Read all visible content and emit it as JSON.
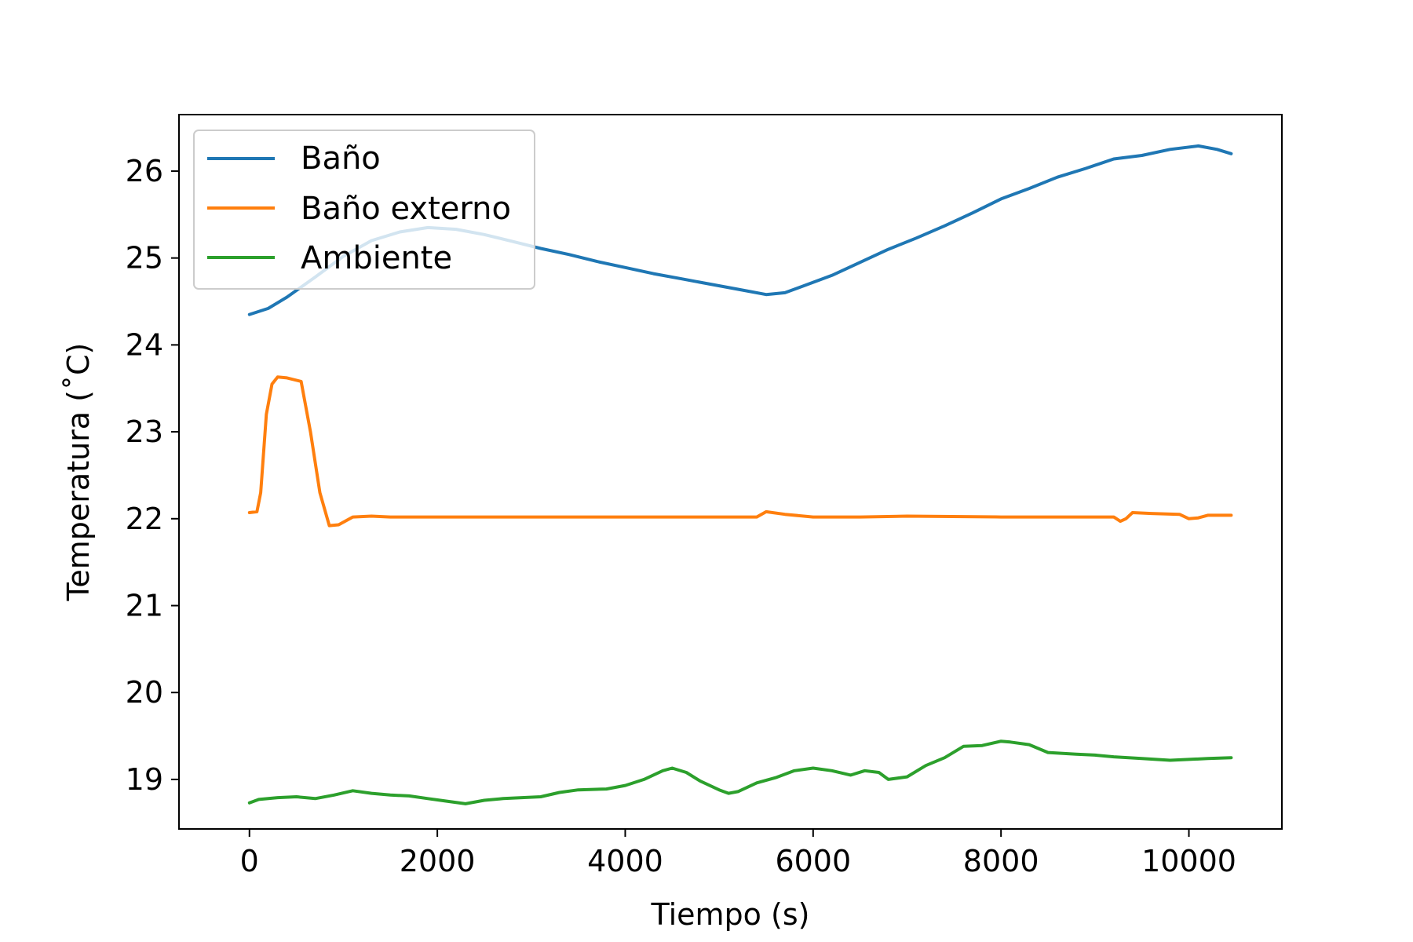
{
  "chart_data": {
    "type": "line",
    "title": "",
    "xlabel": "Tiempo (s)",
    "ylabel": "Temperatura (˚C)",
    "xlim": [
      -750,
      10990
    ],
    "ylim": [
      18.43,
      26.65
    ],
    "xticks": [
      0,
      2000,
      4000,
      6000,
      8000,
      10000
    ],
    "yticks": [
      19,
      20,
      21,
      22,
      23,
      24,
      25,
      26
    ],
    "grid": false,
    "legend_position": "upper left",
    "series": [
      {
        "name": "Baño",
        "color": "#1f77b4",
        "points": [
          [
            0,
            24.35
          ],
          [
            200,
            24.42
          ],
          [
            400,
            24.55
          ],
          [
            700,
            24.78
          ],
          [
            1000,
            25.02
          ],
          [
            1300,
            25.2
          ],
          [
            1600,
            25.3
          ],
          [
            1900,
            25.35
          ],
          [
            2200,
            25.33
          ],
          [
            2500,
            25.27
          ],
          [
            2800,
            25.19
          ],
          [
            3100,
            25.11
          ],
          [
            3400,
            25.04
          ],
          [
            3700,
            24.96
          ],
          [
            4000,
            24.89
          ],
          [
            4300,
            24.82
          ],
          [
            4600,
            24.76
          ],
          [
            4900,
            24.7
          ],
          [
            5200,
            24.64
          ],
          [
            5500,
            24.58
          ],
          [
            5700,
            24.6
          ],
          [
            5900,
            24.68
          ],
          [
            6200,
            24.8
          ],
          [
            6500,
            24.95
          ],
          [
            6800,
            25.1
          ],
          [
            7100,
            25.23
          ],
          [
            7400,
            25.37
          ],
          [
            7700,
            25.52
          ],
          [
            8000,
            25.68
          ],
          [
            8300,
            25.8
          ],
          [
            8600,
            25.93
          ],
          [
            8900,
            26.03
          ],
          [
            9200,
            26.14
          ],
          [
            9500,
            26.18
          ],
          [
            9800,
            26.25
          ],
          [
            10100,
            26.29
          ],
          [
            10300,
            26.25
          ],
          [
            10450,
            26.2
          ]
        ]
      },
      {
        "name": "Baño externo",
        "color": "#ff7f0e",
        "points": [
          [
            0,
            22.07
          ],
          [
            80,
            22.08
          ],
          [
            120,
            22.3
          ],
          [
            180,
            23.2
          ],
          [
            240,
            23.55
          ],
          [
            300,
            23.63
          ],
          [
            400,
            23.62
          ],
          [
            550,
            23.58
          ],
          [
            650,
            23.0
          ],
          [
            750,
            22.3
          ],
          [
            850,
            21.92
          ],
          [
            950,
            21.93
          ],
          [
            1100,
            22.02
          ],
          [
            1300,
            22.03
          ],
          [
            1500,
            22.02
          ],
          [
            2000,
            22.02
          ],
          [
            3000,
            22.02
          ],
          [
            4000,
            22.02
          ],
          [
            5000,
            22.02
          ],
          [
            5400,
            22.02
          ],
          [
            5500,
            22.08
          ],
          [
            5700,
            22.05
          ],
          [
            6000,
            22.02
          ],
          [
            6500,
            22.02
          ],
          [
            7000,
            22.03
          ],
          [
            8000,
            22.02
          ],
          [
            9000,
            22.02
          ],
          [
            9200,
            22.02
          ],
          [
            9270,
            21.97
          ],
          [
            9330,
            22.0
          ],
          [
            9400,
            22.07
          ],
          [
            9600,
            22.06
          ],
          [
            9900,
            22.05
          ],
          [
            10000,
            22.0
          ],
          [
            10100,
            22.01
          ],
          [
            10200,
            22.04
          ],
          [
            10450,
            22.04
          ]
        ]
      },
      {
        "name": "Ambiente",
        "color": "#2ca02c",
        "points": [
          [
            0,
            18.73
          ],
          [
            100,
            18.77
          ],
          [
            300,
            18.79
          ],
          [
            500,
            18.8
          ],
          [
            700,
            18.78
          ],
          [
            900,
            18.82
          ],
          [
            1100,
            18.87
          ],
          [
            1300,
            18.84
          ],
          [
            1500,
            18.82
          ],
          [
            1700,
            18.81
          ],
          [
            1900,
            18.78
          ],
          [
            2100,
            18.75
          ],
          [
            2300,
            18.72
          ],
          [
            2500,
            18.76
          ],
          [
            2700,
            18.78
          ],
          [
            2900,
            18.79
          ],
          [
            3100,
            18.8
          ],
          [
            3300,
            18.85
          ],
          [
            3500,
            18.88
          ],
          [
            3800,
            18.89
          ],
          [
            4000,
            18.93
          ],
          [
            4200,
            19.0
          ],
          [
            4400,
            19.1
          ],
          [
            4500,
            19.13
          ],
          [
            4650,
            19.08
          ],
          [
            4800,
            18.98
          ],
          [
            5000,
            18.88
          ],
          [
            5100,
            18.84
          ],
          [
            5200,
            18.86
          ],
          [
            5400,
            18.96
          ],
          [
            5600,
            19.02
          ],
          [
            5800,
            19.1
          ],
          [
            6000,
            19.13
          ],
          [
            6200,
            19.1
          ],
          [
            6400,
            19.05
          ],
          [
            6550,
            19.1
          ],
          [
            6700,
            19.08
          ],
          [
            6800,
            19.0
          ],
          [
            7000,
            19.03
          ],
          [
            7200,
            19.16
          ],
          [
            7400,
            19.25
          ],
          [
            7600,
            19.38
          ],
          [
            7800,
            19.39
          ],
          [
            8000,
            19.44
          ],
          [
            8100,
            19.43
          ],
          [
            8300,
            19.4
          ],
          [
            8500,
            19.31
          ],
          [
            8800,
            19.29
          ],
          [
            9000,
            19.28
          ],
          [
            9200,
            19.26
          ],
          [
            9500,
            19.24
          ],
          [
            9800,
            19.22
          ],
          [
            10000,
            19.23
          ],
          [
            10200,
            19.24
          ],
          [
            10450,
            19.25
          ]
        ]
      }
    ]
  }
}
